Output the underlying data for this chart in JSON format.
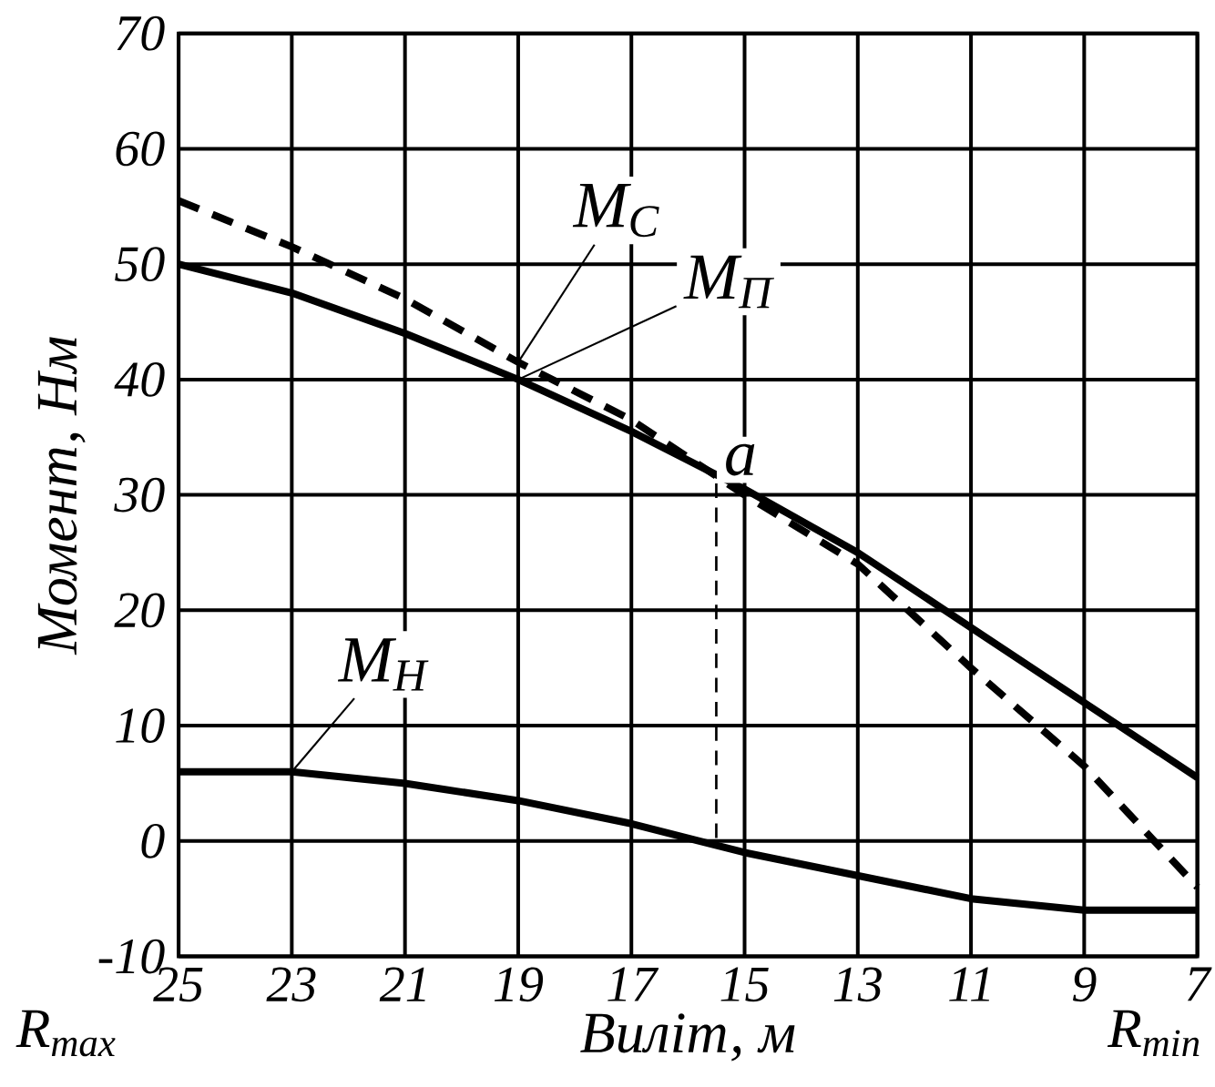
{
  "chart_data": {
    "type": "line",
    "xlabel": "Виліт, м",
    "ylabel": "Момент, Нм",
    "x": [
      25,
      23,
      21,
      19,
      17,
      15,
      13,
      11,
      9,
      7
    ],
    "xlim": [
      25,
      7
    ],
    "xticks": [
      25,
      23,
      21,
      19,
      17,
      15,
      13,
      11,
      9,
      7
    ],
    "ylim": [
      -10,
      70
    ],
    "yticks": [
      -10,
      0,
      10,
      20,
      30,
      40,
      50,
      60,
      70
    ],
    "grid": true,
    "series": [
      {
        "name": "M$_{С}$",
        "color": "#000000",
        "line_style": "dashed",
        "values": [
          55.5,
          51.5,
          47,
          41.5,
          36.5,
          30,
          24,
          15,
          6.5,
          -4
        ]
      },
      {
        "name": "M$_{П}$",
        "color": "#000000",
        "line_style": "solid",
        "values": [
          50,
          47.5,
          44,
          40,
          35.5,
          30.5,
          25,
          18.5,
          12,
          5.5
        ]
      },
      {
        "name": "M$_{Н}$",
        "color": "#000000",
        "line_style": "solid",
        "values": [
          6,
          6,
          5,
          3.5,
          1.5,
          -1,
          -3,
          -5,
          -6,
          -6
        ]
      },
      {
        "color": "#000000",
        "line_style": "dashed",
        "x": [
          15.5,
          15.5
        ],
        "values": [
          31,
          -0.5
        ]
      }
    ],
    "annotations": [
      {
        "text": "a",
        "x": 15.5,
        "y": 31
      },
      "R$_{max}$",
      "R$_{min}$"
    ]
  }
}
